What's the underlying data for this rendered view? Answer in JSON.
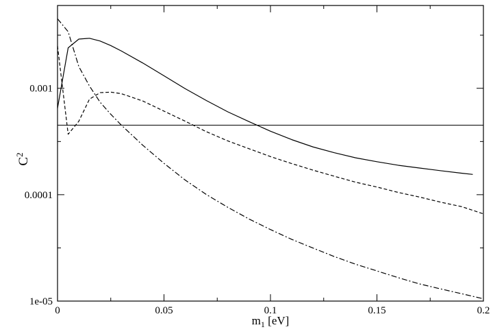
{
  "chart_data": {
    "type": "line",
    "title": "",
    "xlabel": {
      "main": "m",
      "sub": "1",
      "rest": " [eV]"
    },
    "ylabel": {
      "main": "C",
      "sup": "2"
    },
    "xlim": [
      0,
      0.2
    ],
    "ylim": [
      1e-05,
      0.006
    ],
    "yscale": "log",
    "grid": false,
    "legend": "none",
    "x_ticks": [
      {
        "value": 0,
        "label": "0"
      },
      {
        "value": 0.05,
        "label": "0.05"
      },
      {
        "value": 0.1,
        "label": "0.1"
      },
      {
        "value": 0.15,
        "label": "0.15"
      },
      {
        "value": 0.2,
        "label": "0.2"
      }
    ],
    "y_ticks": [
      {
        "value": 1e-05,
        "label": "1e-05"
      },
      {
        "value": 0.0001,
        "label": "0.0001"
      },
      {
        "value": 0.001,
        "label": "0.001"
      }
    ],
    "series": [
      {
        "style": "solid",
        "x": [
          0,
          0.005,
          0.01,
          0.015,
          0.02,
          0.025,
          0.03,
          0.04,
          0.05,
          0.06,
          0.07,
          0.08,
          0.09,
          0.1,
          0.11,
          0.12,
          0.13,
          0.14,
          0.15,
          0.16,
          0.17,
          0.18,
          0.19,
          0.195
        ],
        "y": [
          0.00065,
          0.0024,
          0.0029,
          0.00295,
          0.00278,
          0.00252,
          0.00224,
          0.00173,
          0.00131,
          0.00099,
          0.000765,
          0.0006,
          0.000485,
          0.000395,
          0.000329,
          0.000281,
          0.000248,
          0.000222,
          0.000204,
          0.000189,
          0.000178,
          0.000168,
          0.000159,
          0.000155
        ]
      },
      {
        "style": "dashed",
        "x": [
          0,
          0.005,
          0.01,
          0.015,
          0.02,
          0.025,
          0.03,
          0.04,
          0.05,
          0.06,
          0.07,
          0.08,
          0.09,
          0.1,
          0.11,
          0.12,
          0.13,
          0.14,
          0.15,
          0.16,
          0.17,
          0.18,
          0.19,
          0.2
        ],
        "y": [
          0.0025,
          0.00037,
          0.00049,
          0.00079,
          0.00091,
          0.00092,
          0.00089,
          0.00076,
          0.00061,
          0.00049,
          0.00039,
          0.00032,
          0.00027,
          0.000228,
          0.000196,
          0.00017,
          0.000149,
          0.000131,
          0.000118,
          0.000105,
          9.5e-05,
          8.5e-05,
          7.7e-05,
          6.6e-05
        ]
      },
      {
        "style": "dashdot",
        "x": [
          0,
          0.005,
          0.01,
          0.015,
          0.02,
          0.025,
          0.03,
          0.04,
          0.05,
          0.06,
          0.07,
          0.08,
          0.09,
          0.1,
          0.11,
          0.12,
          0.13,
          0.14,
          0.15,
          0.16,
          0.17,
          0.18,
          0.19,
          0.2
        ],
        "y": [
          0.0045,
          0.0034,
          0.0016,
          0.00105,
          0.00074,
          0.00057,
          0.00045,
          0.000292,
          0.000197,
          0.000137,
          0.0001,
          7.6e-05,
          5.9e-05,
          4.7e-05,
          3.8e-05,
          3.15e-05,
          2.62e-05,
          2.22e-05,
          1.92e-05,
          1.66e-05,
          1.45e-05,
          1.3e-05,
          1.17e-05,
          1.05e-05
        ]
      },
      {
        "style": "solid-thin",
        "x": [
          0,
          0.2
        ],
        "y": [
          0.00045,
          0.00045
        ]
      }
    ]
  }
}
